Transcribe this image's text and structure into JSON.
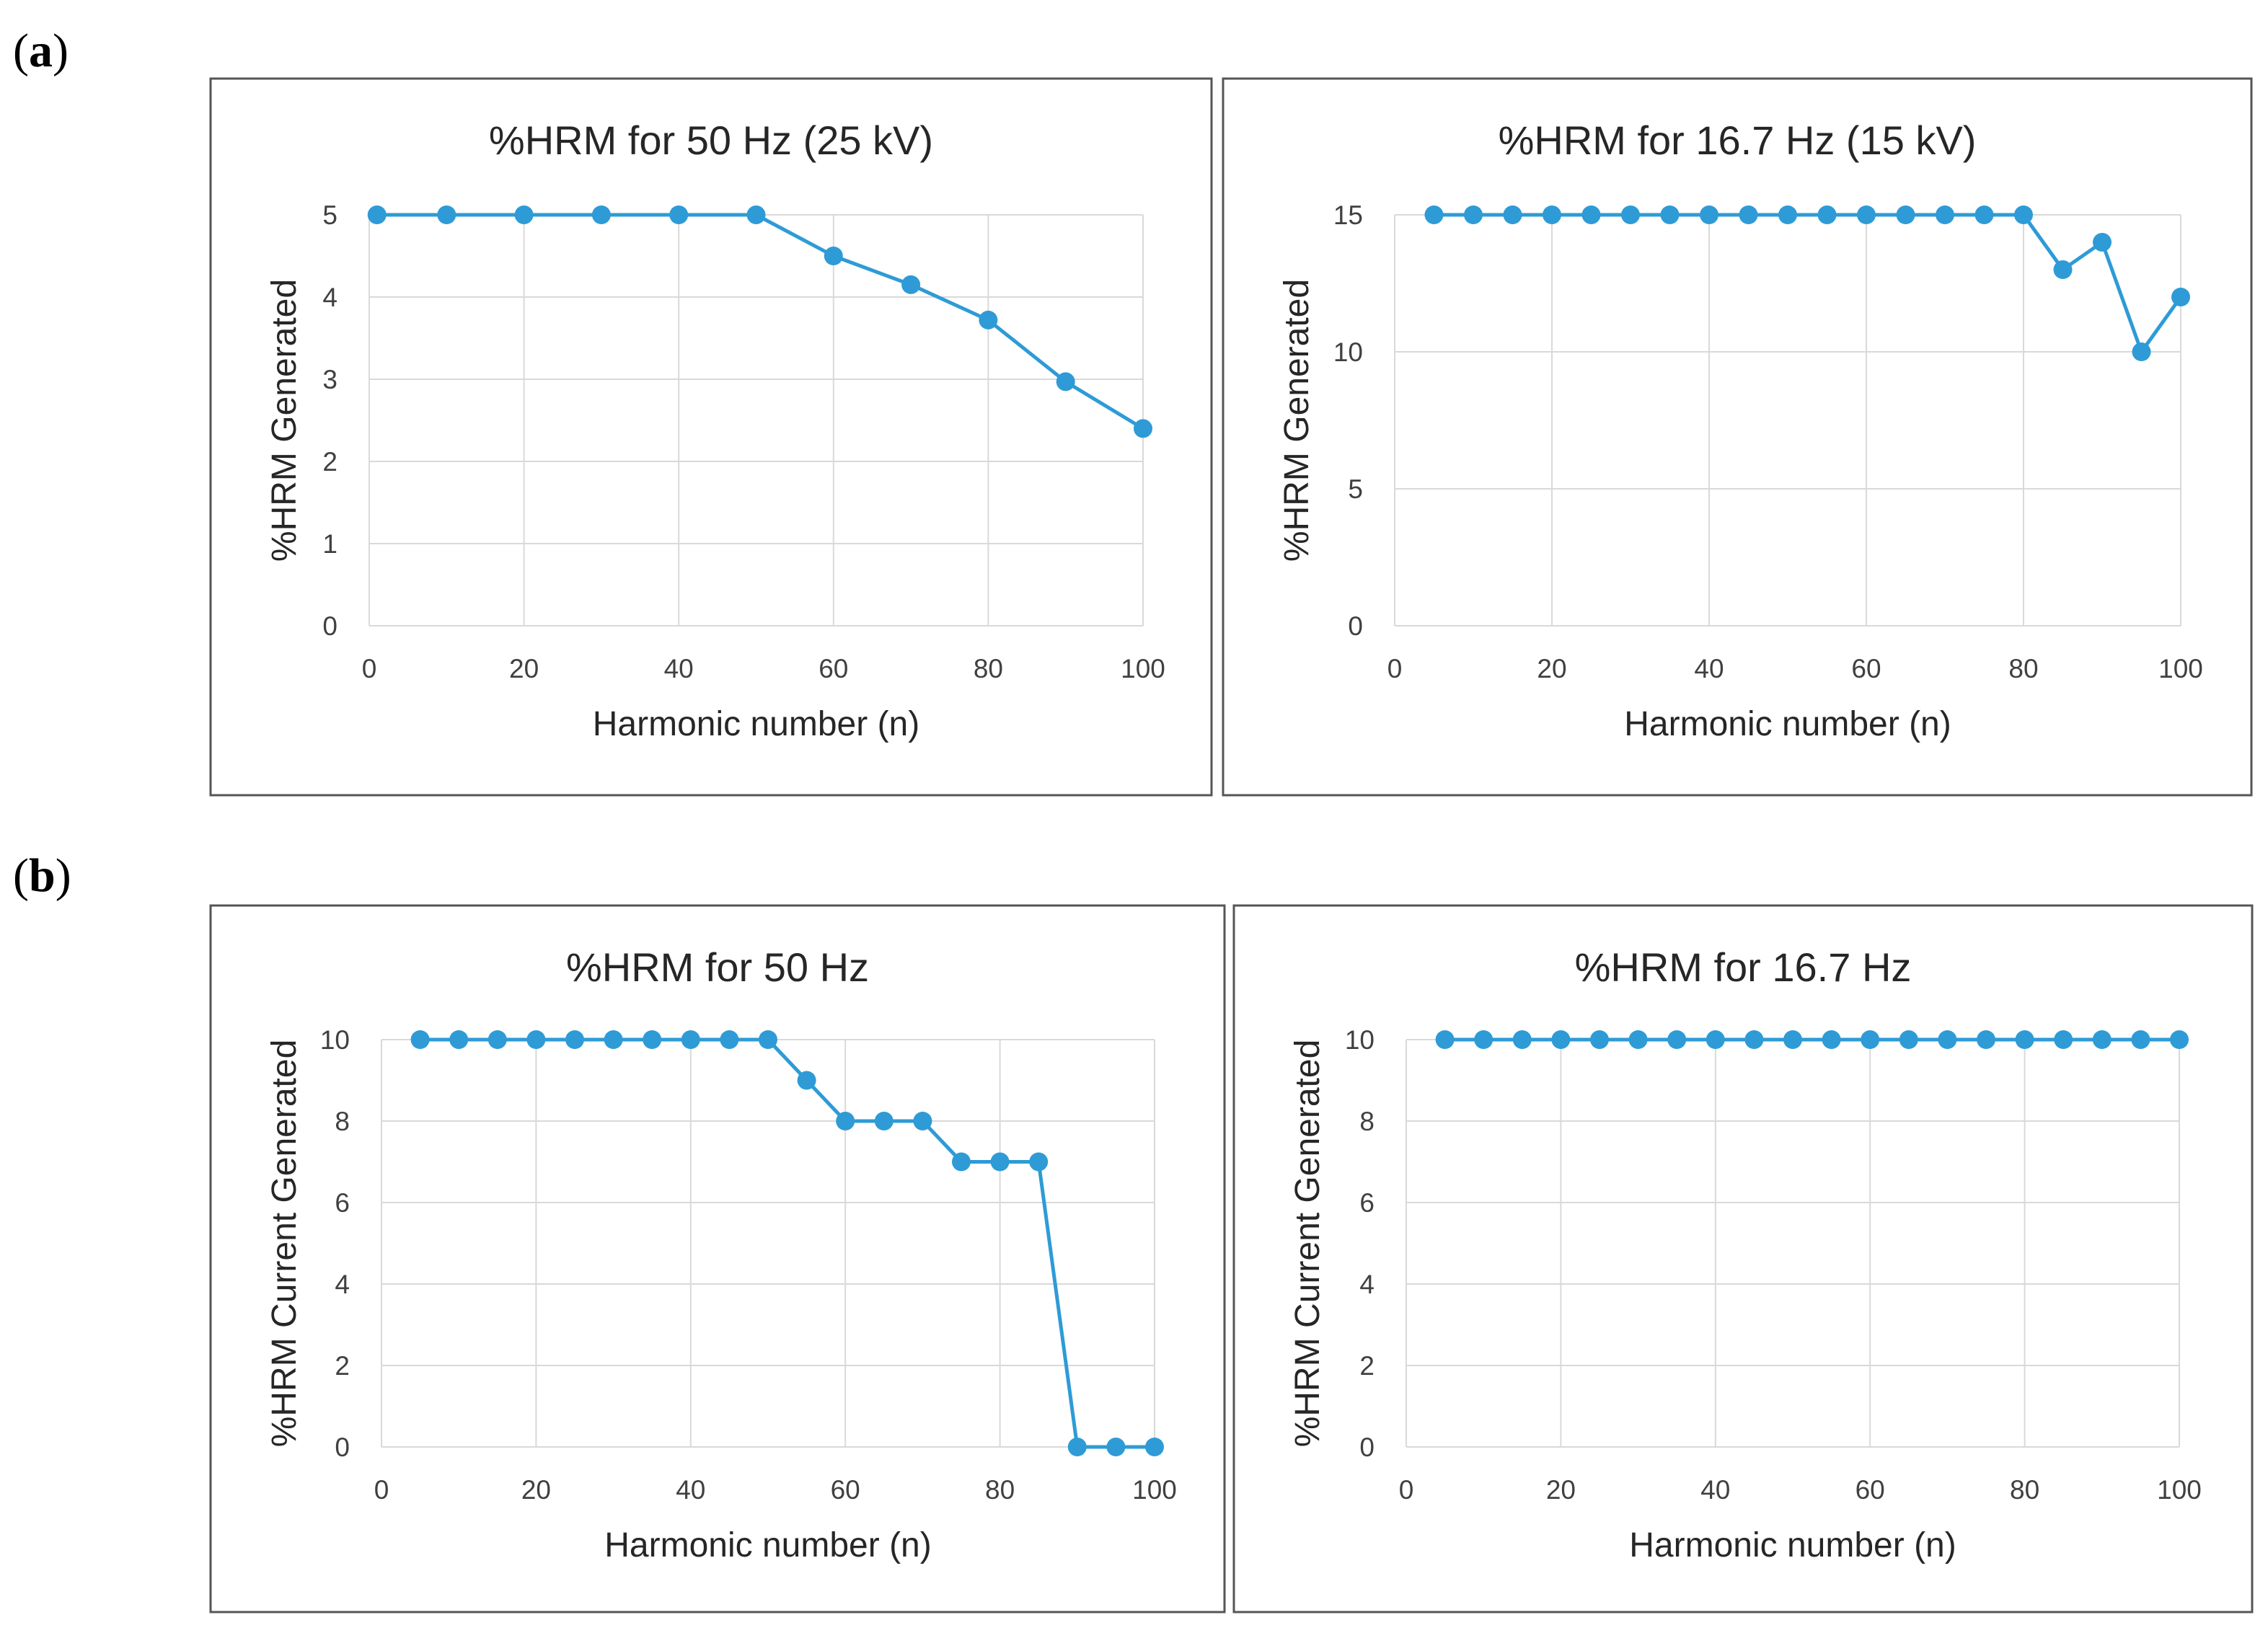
{
  "panel_labels": [
    "a",
    "b"
  ],
  "colors": {
    "series": "#2E9BD6",
    "grid": "#D9D9D9",
    "frame": "#555555"
  },
  "chart_data": [
    {
      "type": "line",
      "panel": "a",
      "title": "%HRM for 50 Hz (25 kV)",
      "xlabel": "Harmonic number (n)",
      "ylabel": "%HRM Generated",
      "xlim": [
        0,
        100
      ],
      "ylim": [
        0,
        5
      ],
      "xticks": [
        0,
        20,
        40,
        60,
        80,
        100
      ],
      "yticks": [
        0,
        1,
        2,
        3,
        4,
        5
      ],
      "grid": true,
      "x": [
        1,
        10,
        20,
        30,
        40,
        50,
        60,
        70,
        80,
        90,
        100
      ],
      "y": [
        5,
        5,
        5,
        5,
        5,
        5,
        4.5,
        4.15,
        3.72,
        2.97,
        2.4
      ]
    },
    {
      "type": "line",
      "panel": "a",
      "title": "%HRM for 16.7 Hz (15 kV)",
      "xlabel": "Harmonic number (n)",
      "ylabel": "%HRM Generated",
      "xlim": [
        0,
        100
      ],
      "ylim": [
        0,
        15
      ],
      "xticks": [
        0,
        20,
        40,
        60,
        80,
        100
      ],
      "yticks": [
        0,
        5,
        10,
        15
      ],
      "grid": true,
      "x": [
        5,
        10,
        15,
        20,
        25,
        30,
        35,
        40,
        45,
        50,
        55,
        60,
        65,
        70,
        75,
        80,
        85,
        90,
        95,
        100
      ],
      "y": [
        15,
        15,
        15,
        15,
        15,
        15,
        15,
        15,
        15,
        15,
        15,
        15,
        15,
        15,
        15,
        15,
        13,
        14,
        10,
        12
      ]
    },
    {
      "type": "line",
      "panel": "b",
      "title": "%HRM for 50 Hz",
      "xlabel": "Harmonic number (n)",
      "ylabel": "%HRM Current Generated",
      "xlim": [
        0,
        100
      ],
      "ylim": [
        0,
        10
      ],
      "xticks": [
        0,
        20,
        40,
        60,
        80,
        100
      ],
      "yticks": [
        0,
        2,
        4,
        6,
        8,
        10
      ],
      "grid": true,
      "x": [
        5,
        10,
        15,
        20,
        25,
        30,
        35,
        40,
        45,
        50,
        55,
        60,
        65,
        70,
        75,
        80,
        85,
        90,
        95,
        100
      ],
      "y": [
        10,
        10,
        10,
        10,
        10,
        10,
        10,
        10,
        10,
        10,
        9,
        8,
        8,
        8,
        7,
        7,
        7,
        0,
        0,
        0
      ]
    },
    {
      "type": "line",
      "panel": "b",
      "title": "%HRM for 16.7 Hz",
      "xlabel": "Harmonic number (n)",
      "ylabel": "%HRM Current Generated",
      "xlim": [
        0,
        100
      ],
      "ylim": [
        0,
        10
      ],
      "xticks": [
        0,
        20,
        40,
        60,
        80,
        100
      ],
      "yticks": [
        0,
        2,
        4,
        6,
        8,
        10
      ],
      "grid": true,
      "x": [
        5,
        10,
        15,
        20,
        25,
        30,
        35,
        40,
        45,
        50,
        55,
        60,
        65,
        70,
        75,
        80,
        85,
        90,
        95,
        100
      ],
      "y": [
        10,
        10,
        10,
        10,
        10,
        10,
        10,
        10,
        10,
        10,
        10,
        10,
        10,
        10,
        10,
        10,
        10,
        10,
        10,
        10
      ]
    }
  ]
}
